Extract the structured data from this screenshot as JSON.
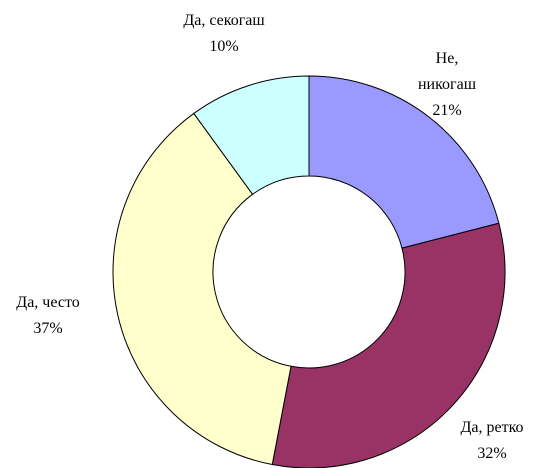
{
  "chart_data": {
    "type": "donut",
    "categories": [
      "Не, никогаш",
      "Да, ретко",
      "Да, често",
      "Да, секогаш"
    ],
    "values": [
      21,
      32,
      37,
      10
    ],
    "value_labels": [
      "21%",
      "32%",
      "37%",
      "10%"
    ],
    "colors": [
      "#9999ff",
      "#993366",
      "#ffffcc",
      "#ccffff"
    ]
  }
}
